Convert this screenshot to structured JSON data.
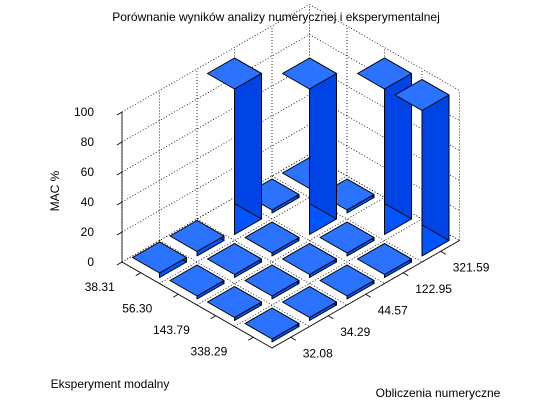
{
  "chart_data": {
    "type": "bar3d",
    "title": "Porównanie wyników analizy numerycznej i eksperymentalnej",
    "zlabel": "MAC %",
    "xlabel": "Eksperyment modalny",
    "ylabel": "Obliczenia numeryczne",
    "experimental_modes": [
      "38.31",
      "56.30",
      "143.79",
      "338.29"
    ],
    "numerical_modes": [
      "32.08",
      "34.29",
      "44.57",
      "122.95",
      "321.59"
    ],
    "zticks": [
      0,
      20,
      40,
      60,
      80,
      100
    ],
    "zlim": [
      0,
      100
    ],
    "grid": true,
    "bar_color": "#0055ff",
    "mac_values": [
      [
        3,
        3,
        97,
        2,
        2
      ],
      [
        2,
        2,
        2,
        97,
        2
      ],
      [
        2,
        2,
        2,
        2,
        97
      ],
      [
        2,
        2,
        2,
        2,
        97
      ]
    ]
  }
}
